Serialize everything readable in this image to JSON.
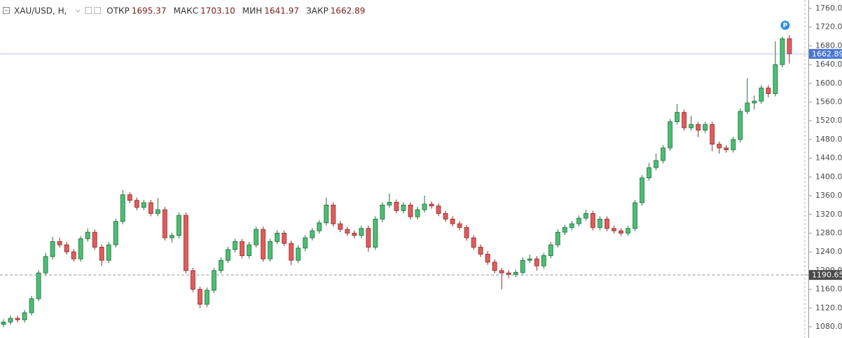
{
  "chart_data": {
    "type": "candlestick",
    "header": {
      "symbol": "XAU/USD, H,",
      "fields": [
        {
          "name": "ОТКР",
          "label": "1695.37"
        },
        {
          "name": "МАКС",
          "label": "1703.10"
        },
        {
          "name": "МИН",
          "label": "1641.97"
        },
        {
          "name": "ЗАКР",
          "label": "1662.89"
        }
      ]
    },
    "up_color": "#4bbf73",
    "down_color": "#e35b5b",
    "ylim": [
      1056,
      1778
    ],
    "yticks": [
      {
        "value": 1080,
        "label": "1080.00"
      },
      {
        "value": 1120,
        "label": "1120.00"
      },
      {
        "value": 1160,
        "label": "1160.00"
      },
      {
        "value": 1200,
        "label": "1200.00"
      },
      {
        "value": 1240,
        "label": "1240.00"
      },
      {
        "value": 1280,
        "label": "1280.00"
      },
      {
        "value": 1320,
        "label": "1320.00"
      },
      {
        "value": 1360,
        "label": "1360.00"
      },
      {
        "value": 1400,
        "label": "1400.00"
      },
      {
        "value": 1440,
        "label": "1440.00"
      },
      {
        "value": 1480,
        "label": "1480.00"
      },
      {
        "value": 1520,
        "label": "1520.00"
      },
      {
        "value": 1560,
        "label": "1560.00"
      },
      {
        "value": 1600,
        "label": "1600.00"
      },
      {
        "value": 1640,
        "label": "1640.00"
      },
      {
        "value": 1680,
        "label": "1680.00"
      },
      {
        "value": 1720,
        "label": "1720.00"
      },
      {
        "value": 1760,
        "label": "1760.00"
      }
    ],
    "last_price": {
      "value": 1662.89,
      "label": "1662.89"
    },
    "marker_price": {
      "value": 1190.65,
      "label": "1190.65"
    },
    "event_marker": "P",
    "ohlc": [
      [
        1085,
        1096,
        1079,
        1090
      ],
      [
        1090,
        1104,
        1084,
        1098
      ],
      [
        1098,
        1104,
        1089,
        1095
      ],
      [
        1095,
        1116,
        1089,
        1110
      ],
      [
        1110,
        1146,
        1104,
        1140
      ],
      [
        1140,
        1201,
        1134,
        1195
      ],
      [
        1195,
        1238,
        1189,
        1230
      ],
      [
        1230,
        1272,
        1224,
        1262
      ],
      [
        1262,
        1270,
        1249,
        1255
      ],
      [
        1255,
        1261,
        1234,
        1240
      ],
      [
        1240,
        1246,
        1219,
        1225
      ],
      [
        1225,
        1274,
        1219,
        1268
      ],
      [
        1268,
        1290,
        1262,
        1282
      ],
      [
        1282,
        1288,
        1244,
        1250
      ],
      [
        1250,
        1256,
        1210,
        1222
      ],
      [
        1222,
        1261,
        1216,
        1255
      ],
      [
        1255,
        1311,
        1249,
        1305
      ],
      [
        1305,
        1372,
        1299,
        1362
      ],
      [
        1362,
        1368,
        1344,
        1350
      ],
      [
        1350,
        1356,
        1329,
        1335
      ],
      [
        1335,
        1351,
        1329,
        1345
      ],
      [
        1345,
        1351,
        1316,
        1322
      ],
      [
        1322,
        1355,
        1316,
        1330
      ],
      [
        1330,
        1336,
        1264,
        1270
      ],
      [
        1270,
        1281,
        1260,
        1275
      ],
      [
        1275,
        1324,
        1269,
        1318
      ],
      [
        1318,
        1324,
        1194,
        1200
      ],
      [
        1200,
        1206,
        1154,
        1160
      ],
      [
        1160,
        1166,
        1120,
        1128
      ],
      [
        1128,
        1164,
        1122,
        1158
      ],
      [
        1158,
        1206,
        1152,
        1200
      ],
      [
        1200,
        1228,
        1194,
        1222
      ],
      [
        1222,
        1251,
        1216,
        1245
      ],
      [
        1245,
        1268,
        1239,
        1262
      ],
      [
        1262,
        1268,
        1226,
        1232
      ],
      [
        1232,
        1261,
        1226,
        1255
      ],
      [
        1255,
        1294,
        1249,
        1288
      ],
      [
        1288,
        1294,
        1219,
        1225
      ],
      [
        1225,
        1268,
        1219,
        1262
      ],
      [
        1262,
        1286,
        1256,
        1280
      ],
      [
        1280,
        1286,
        1252,
        1258
      ],
      [
        1258,
        1264,
        1212,
        1222
      ],
      [
        1222,
        1254,
        1216,
        1248
      ],
      [
        1248,
        1276,
        1242,
        1270
      ],
      [
        1270,
        1291,
        1264,
        1285
      ],
      [
        1285,
        1308,
        1279,
        1302
      ],
      [
        1302,
        1356,
        1296,
        1340
      ],
      [
        1340,
        1346,
        1294,
        1300
      ],
      [
        1300,
        1306,
        1282,
        1288
      ],
      [
        1288,
        1294,
        1274,
        1280
      ],
      [
        1280,
        1286,
        1269,
        1275
      ],
      [
        1275,
        1296,
        1269,
        1290
      ],
      [
        1290,
        1296,
        1240,
        1250
      ],
      [
        1250,
        1316,
        1244,
        1310
      ],
      [
        1310,
        1346,
        1304,
        1340
      ],
      [
        1340,
        1365,
        1334,
        1346
      ],
      [
        1346,
        1352,
        1322,
        1328
      ],
      [
        1328,
        1346,
        1322,
        1340
      ],
      [
        1340,
        1346,
        1309,
        1315
      ],
      [
        1315,
        1336,
        1309,
        1330
      ],
      [
        1330,
        1360,
        1324,
        1342
      ],
      [
        1342,
        1348,
        1332,
        1338
      ],
      [
        1338,
        1344,
        1316,
        1322
      ],
      [
        1322,
        1328,
        1304,
        1310
      ],
      [
        1310,
        1316,
        1294,
        1300
      ],
      [
        1300,
        1306,
        1286,
        1292
      ],
      [
        1292,
        1298,
        1264,
        1270
      ],
      [
        1270,
        1276,
        1244,
        1250
      ],
      [
        1250,
        1256,
        1229,
        1235
      ],
      [
        1235,
        1241,
        1212,
        1218
      ],
      [
        1218,
        1224,
        1194,
        1200
      ],
      [
        1200,
        1206,
        1160,
        1195
      ],
      [
        1195,
        1201,
        1184,
        1192
      ],
      [
        1192,
        1202,
        1186,
        1196
      ],
      [
        1196,
        1228,
        1190,
        1222
      ],
      [
        1222,
        1234,
        1216,
        1225
      ],
      [
        1225,
        1231,
        1200,
        1210
      ],
      [
        1210,
        1238,
        1204,
        1232
      ],
      [
        1232,
        1261,
        1226,
        1255
      ],
      [
        1255,
        1288,
        1249,
        1282
      ],
      [
        1282,
        1298,
        1276,
        1292
      ],
      [
        1292,
        1306,
        1286,
        1300
      ],
      [
        1300,
        1318,
        1294,
        1312
      ],
      [
        1312,
        1330,
        1306,
        1322
      ],
      [
        1322,
        1328,
        1286,
        1292
      ],
      [
        1292,
        1316,
        1286,
        1310
      ],
      [
        1310,
        1316,
        1284,
        1290
      ],
      [
        1290,
        1296,
        1279,
        1285
      ],
      [
        1285,
        1291,
        1274,
        1280
      ],
      [
        1280,
        1296,
        1274,
        1290
      ],
      [
        1290,
        1351,
        1284,
        1345
      ],
      [
        1345,
        1404,
        1339,
        1398
      ],
      [
        1398,
        1430,
        1392,
        1420
      ],
      [
        1420,
        1450,
        1414,
        1435
      ],
      [
        1435,
        1468,
        1429,
        1462
      ],
      [
        1462,
        1524,
        1456,
        1518
      ],
      [
        1518,
        1556,
        1512,
        1538
      ],
      [
        1538,
        1544,
        1499,
        1505
      ],
      [
        1505,
        1530,
        1499,
        1512
      ],
      [
        1512,
        1518,
        1485,
        1500
      ],
      [
        1500,
        1518,
        1494,
        1512
      ],
      [
        1512,
        1518,
        1455,
        1470
      ],
      [
        1470,
        1476,
        1450,
        1462
      ],
      [
        1462,
        1468,
        1452,
        1458
      ],
      [
        1458,
        1486,
        1452,
        1480
      ],
      [
        1480,
        1546,
        1474,
        1540
      ],
      [
        1540,
        1611,
        1534,
        1558
      ],
      [
        1558,
        1574,
        1544,
        1562
      ],
      [
        1562,
        1596,
        1556,
        1590
      ],
      [
        1590,
        1596,
        1570,
        1578
      ],
      [
        1578,
        1690,
        1572,
        1640
      ],
      [
        1640,
        1700,
        1634,
        1695.37
      ],
      [
        1695.37,
        1703.1,
        1641.97,
        1662.89
      ]
    ]
  }
}
